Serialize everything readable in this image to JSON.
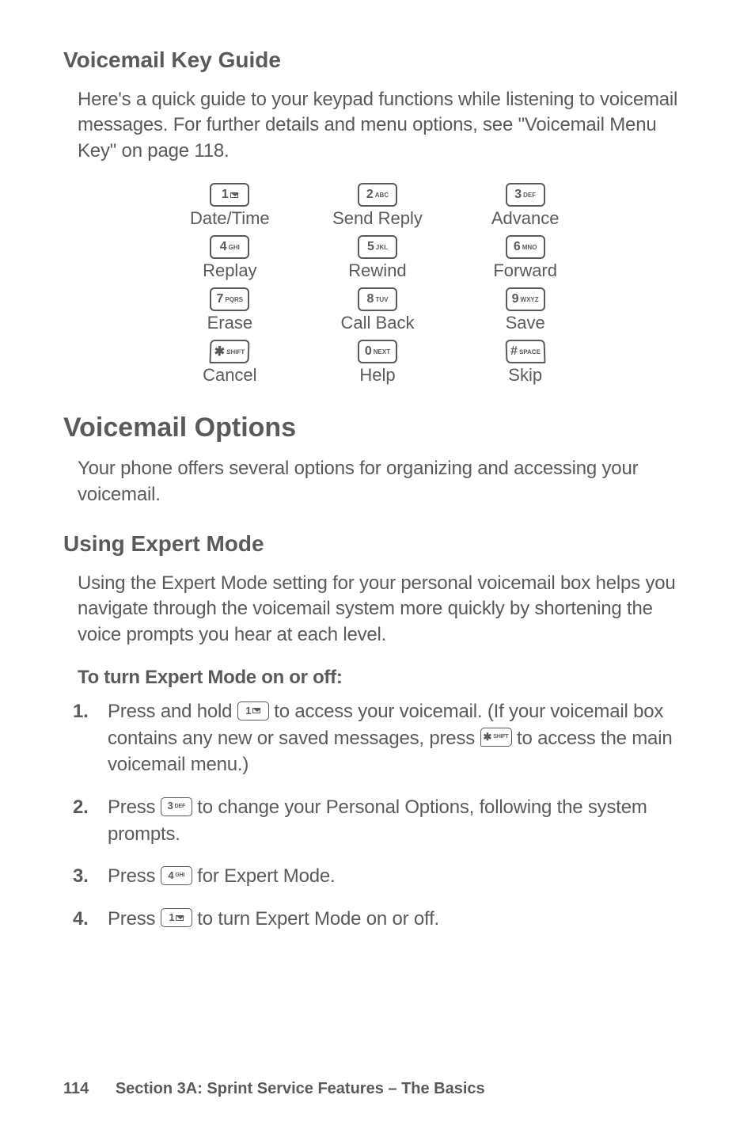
{
  "section1": {
    "title": "Voicemail Key Guide",
    "intro": "Here's a quick guide to your keypad functions while listening to voicemail messages. For further details and menu options, see \"Voicemail Menu Key\" on page 118."
  },
  "keypad": [
    {
      "digit": "1",
      "sub": "mail",
      "label": "Date/Time"
    },
    {
      "digit": "2",
      "sub": "ABC",
      "label": "Send Reply"
    },
    {
      "digit": "3",
      "sub": "DEF",
      "label": "Advance"
    },
    {
      "digit": "4",
      "sub": "GHI",
      "label": "Replay"
    },
    {
      "digit": "5",
      "sub": "JKL",
      "label": "Rewind"
    },
    {
      "digit": "6",
      "sub": "MNO",
      "label": "Forward"
    },
    {
      "digit": "7",
      "sub": "PQRS",
      "label": "Erase"
    },
    {
      "digit": "8",
      "sub": "TUV",
      "label": "Call Back"
    },
    {
      "digit": "9",
      "sub": "WXYZ",
      "label": "Save"
    },
    {
      "digit": "✱",
      "sub": "SHIFT",
      "label": "Cancel",
      "shape": "star"
    },
    {
      "digit": "0",
      "sub": "NEXT",
      "label": "Help"
    },
    {
      "digit": "#",
      "sub": "SPACE",
      "label": "Skip",
      "shape": "hash"
    }
  ],
  "section2": {
    "title": "Voicemail Options",
    "intro": "Your phone offers several options for organizing and accessing your voicemail."
  },
  "section3": {
    "title": "Using Expert Mode",
    "intro": "Using the Expert Mode setting for your personal voicemail box helps you navigate through the voicemail system more quickly by shortening the voice prompts you hear at each level.",
    "subhead": "To turn Expert Mode on or off:"
  },
  "steps": {
    "s1a": "Press and hold ",
    "s1b": " to access your voicemail. (If your voicemail box contains any new or saved messages, press ",
    "s1c": " to access the main voicemail menu.)",
    "s2a": "Press ",
    "s2b": " to change your Personal Options, following the system prompts.",
    "s3a": "Press ",
    "s3b": " for Expert Mode.",
    "s4a": "Press ",
    "s4b": " to turn Expert Mode on or off.",
    "n1": "1.",
    "n2": "2.",
    "n3": "3.",
    "n4": "4."
  },
  "inline_keys": {
    "k1": {
      "digit": "1",
      "sub": "mail"
    },
    "kstar": {
      "digit": "✱",
      "sub": "SHIFT"
    },
    "k3": {
      "digit": "3",
      "sub": "DEF"
    },
    "k4": {
      "digit": "4",
      "sub": "GHI"
    }
  },
  "footer": {
    "page": "114",
    "text": "Section 3A: Sprint Service Features – The Basics"
  }
}
